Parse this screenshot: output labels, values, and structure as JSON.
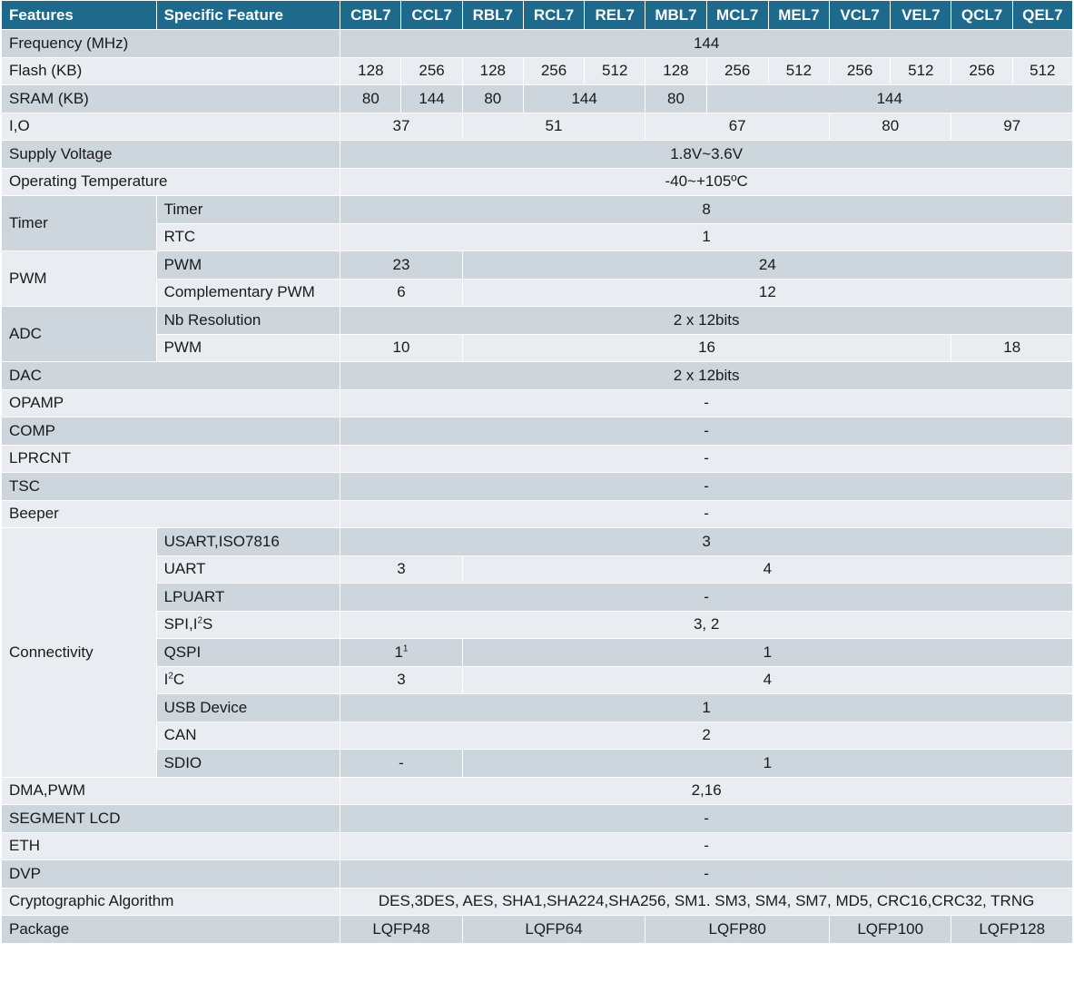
{
  "header": {
    "features": "Features",
    "specific": "Specific Feature",
    "models": [
      "CBL7",
      "CCL7",
      "RBL7",
      "RCL7",
      "REL7",
      "MBL7",
      "MCL7",
      "MEL7",
      "VCL7",
      "VEL7",
      "QCL7",
      "QEL7"
    ]
  },
  "rows": {
    "frequency": {
      "label": "Frequency (MHz)",
      "v": "144"
    },
    "flash": {
      "label": "Flash (KB)",
      "v": [
        "128",
        "256",
        "128",
        "256",
        "512",
        "128",
        "256",
        "512",
        "256",
        "512",
        "256",
        "512"
      ]
    },
    "sram": {
      "label": "SRAM (KB)",
      "v": [
        "80",
        "144",
        "80",
        "144",
        "80",
        "144"
      ]
    },
    "io": {
      "label": "I,O",
      "v": [
        "37",
        "51",
        "67",
        "80",
        "97"
      ]
    },
    "supply": {
      "label": "Supply Voltage",
      "v": "1.8V~3.6V"
    },
    "temp": {
      "label": "Operating Temperature",
      "v": "-40~+105ºC"
    },
    "timer": {
      "label": "Timer",
      "sub1": "Timer",
      "v1": "8",
      "sub2": "RTC",
      "v2": "1"
    },
    "pwm": {
      "label": "PWM",
      "sub1": "PWM",
      "v1": [
        "23",
        "24"
      ],
      "sub2": "Complementary PWM",
      "v2": [
        "6",
        "12"
      ]
    },
    "adc": {
      "label": "ADC",
      "sub1": "Nb Resolution",
      "v1": "2 x 12bits",
      "sub2": "PWM",
      "v2": [
        "10",
        "16",
        "18"
      ]
    },
    "dac": {
      "label": "DAC",
      "v": "2 x 12bits"
    },
    "opamp": {
      "label": "OPAMP",
      "v": "-"
    },
    "comp": {
      "label": "COMP",
      "v": "-"
    },
    "lprcnt": {
      "label": "LPRCNT",
      "v": "-"
    },
    "tsc": {
      "label": "TSC",
      "v": "-"
    },
    "beeper": {
      "label": "Beeper",
      "v": "-"
    },
    "connectivity": {
      "label": "Connectivity",
      "usart": {
        "sub": "USART,ISO7816",
        "v": "3"
      },
      "uart": {
        "sub": "UART",
        "v": [
          "3",
          "4"
        ]
      },
      "lpuart": {
        "sub": "LPUART",
        "v": "-"
      },
      "spi": {
        "sub_a": "SPI,I",
        "sub_sup": "2",
        "sub_b": "S",
        "v": "3, 2"
      },
      "qspi": {
        "sub": "QSPI",
        "v1": "1",
        "v1_sup": "1",
        "v2": "1"
      },
      "i2c": {
        "sub_a": "I",
        "sub_sup": "2",
        "sub_b": "C",
        "v": [
          "3",
          "4"
        ]
      },
      "usb": {
        "sub": "USB Device",
        "v": "1"
      },
      "can": {
        "sub": "CAN",
        "v": "2"
      },
      "sdio": {
        "sub": "SDIO",
        "v": [
          "-",
          "1"
        ]
      }
    },
    "dma": {
      "label": "DMA,PWM",
      "v": "2,16"
    },
    "lcd": {
      "label": "SEGMENT LCD",
      "v": "-"
    },
    "eth": {
      "label": "ETH",
      "v": "-"
    },
    "dvp": {
      "label": "DVP",
      "v": "-"
    },
    "crypto": {
      "label": "Cryptographic Algorithm",
      "v": "DES,3DES, AES, SHA1,SHA224,SHA256, SM1. SM3, SM4, SM7, MD5, CRC16,CRC32, TRNG"
    },
    "package": {
      "label": "Package",
      "v": [
        "LQFP48",
        "LQFP64",
        "LQFP80",
        "LQFP100",
        "LQFP128"
      ]
    }
  }
}
